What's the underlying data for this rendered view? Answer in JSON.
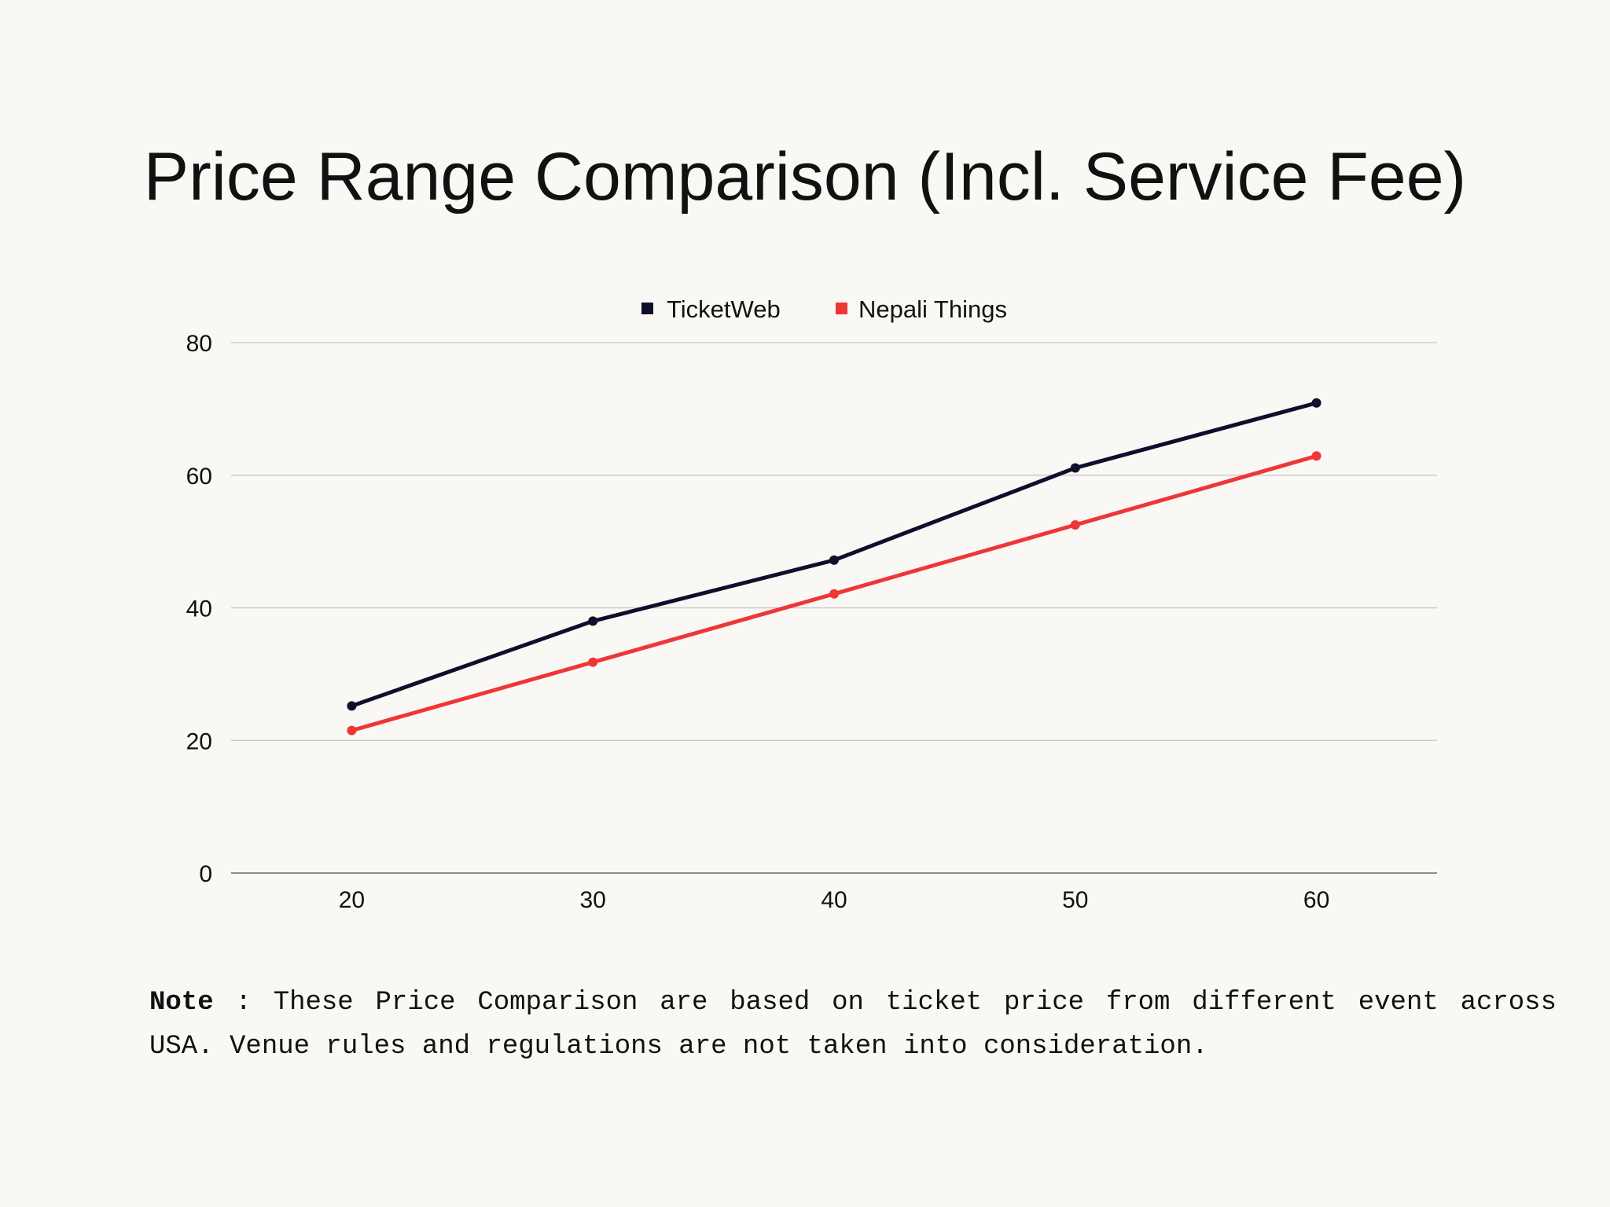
{
  "chart_data": {
    "type": "line",
    "title": "Price Range Comparison (Incl. Service Fee)",
    "x": [
      20,
      30,
      40,
      50,
      60
    ],
    "x_tick_labels": [
      "20",
      "30",
      "40",
      "50",
      "60"
    ],
    "xlim": [
      15,
      65
    ],
    "ylim": [
      0,
      80
    ],
    "y_ticks": [
      0,
      20,
      40,
      60,
      80
    ],
    "y_tick_labels": [
      "0",
      "20",
      "40",
      "60",
      "80"
    ],
    "grid": "horizontal",
    "legend_position": "top-center",
    "series": [
      {
        "name": "TicketWeb",
        "color": "#0D0F2B",
        "values": [
          25.2,
          38.0,
          47.2,
          61.1,
          70.9
        ]
      },
      {
        "name": "Nepali Things",
        "color": "#EF3636",
        "values": [
          21.5,
          31.8,
          42.1,
          52.5,
          62.9
        ]
      }
    ]
  },
  "note": {
    "label": "Note",
    "separator": " : ",
    "text": "These Price Comparison are based on ticket price from different event across USA. Venue rules and regulations are not taken into consideration."
  }
}
